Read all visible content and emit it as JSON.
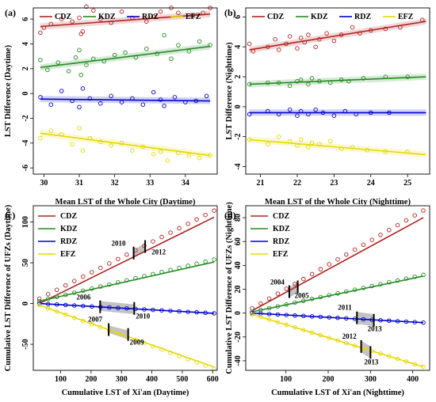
{
  "colors": {
    "CDZ": "#b22222",
    "KDZ": "#228b22",
    "RDZ": "#0000cd",
    "EFZ": "#e5d800",
    "band": "#aaaaaa"
  },
  "chart_data": [
    {
      "type": "scatter",
      "panel_label": "(a)",
      "xlabel": "Mean LST of the Whole City (Daytime)",
      "ylabel": "LST Difference (Daytime)",
      "xlim": [
        29.7,
        34.9
      ],
      "ylim": [
        -6.5,
        6.9
      ],
      "xticks": [
        30,
        31,
        32,
        33,
        34
      ],
      "yticks": [
        -6,
        -4,
        -2,
        0,
        2,
        4,
        6
      ],
      "legend_position": "top",
      "series": [
        {
          "name": "CDZ",
          "key": "CDZ",
          "fit": [
            [
              29.9,
              5.4
            ],
            [
              34.7,
              6.4
            ]
          ],
          "points": [
            [
              29.9,
              4.9
            ],
            [
              30.0,
              5.3
            ],
            [
              30.2,
              5.6
            ],
            [
              30.5,
              6.0
            ],
            [
              30.8,
              5.8
            ],
            [
              31.0,
              6.1
            ],
            [
              31.05,
              4.8
            ],
            [
              31.1,
              5.0
            ],
            [
              31.2,
              7.0
            ],
            [
              31.4,
              6.7
            ],
            [
              31.6,
              6.0
            ],
            [
              31.9,
              5.7
            ],
            [
              32.2,
              6.6
            ],
            [
              32.5,
              6.1
            ],
            [
              32.9,
              5.8
            ],
            [
              33.1,
              6.2
            ],
            [
              33.3,
              6.6
            ],
            [
              33.6,
              6.9
            ],
            [
              33.8,
              6.5
            ],
            [
              34.2,
              6.3
            ],
            [
              34.5,
              6.5
            ],
            [
              34.7,
              6.9
            ]
          ]
        },
        {
          "name": "KDZ",
          "key": "KDZ",
          "fit": [
            [
              29.9,
              2.1
            ],
            [
              34.7,
              3.8
            ]
          ],
          "points": [
            [
              29.9,
              2.7
            ],
            [
              30.1,
              1.9
            ],
            [
              30.4,
              2.5
            ],
            [
              30.7,
              1.8
            ],
            [
              30.9,
              2.9
            ],
            [
              31.0,
              3.5
            ],
            [
              31.05,
              1.5
            ],
            [
              31.2,
              2.3
            ],
            [
              31.4,
              2.8
            ],
            [
              31.7,
              2.6
            ],
            [
              32.0,
              3.1
            ],
            [
              32.3,
              3.3
            ],
            [
              32.6,
              2.9
            ],
            [
              32.9,
              3.6
            ],
            [
              33.2,
              3.2
            ],
            [
              33.4,
              4.7
            ],
            [
              33.6,
              2.8
            ],
            [
              33.8,
              3.9
            ],
            [
              34.1,
              3.4
            ],
            [
              34.4,
              4.2
            ],
            [
              34.7,
              3.9
            ]
          ]
        },
        {
          "name": "RDZ",
          "key": "RDZ",
          "fit": [
            [
              29.9,
              -0.45
            ],
            [
              34.7,
              -0.6
            ]
          ],
          "points": [
            [
              29.9,
              -0.3
            ],
            [
              30.2,
              -0.9
            ],
            [
              30.5,
              0.2
            ],
            [
              30.8,
              -0.6
            ],
            [
              31.0,
              -1.1
            ],
            [
              31.1,
              0.4
            ],
            [
              31.3,
              -0.4
            ],
            [
              31.6,
              -0.8
            ],
            [
              31.9,
              -0.2
            ],
            [
              32.2,
              -0.7
            ],
            [
              32.5,
              -0.4
            ],
            [
              32.8,
              -0.9
            ],
            [
              33.1,
              0.1
            ],
            [
              33.3,
              -0.5
            ],
            [
              33.4,
              -1.0
            ],
            [
              33.7,
              -0.3
            ],
            [
              34.0,
              -0.7
            ],
            [
              34.3,
              -0.6
            ],
            [
              34.6,
              -0.2
            ]
          ]
        },
        {
          "name": "EFZ",
          "key": "EFZ",
          "fit": [
            [
              29.9,
              -3.2
            ],
            [
              34.7,
              -5.0
            ]
          ],
          "points": [
            [
              29.9,
              -3.6
            ],
            [
              30.2,
              -3.0
            ],
            [
              30.5,
              -3.3
            ],
            [
              30.8,
              -4.1
            ],
            [
              31.0,
              -2.8
            ],
            [
              31.1,
              -4.6
            ],
            [
              31.3,
              -3.6
            ],
            [
              31.6,
              -3.9
            ],
            [
              31.9,
              -4.2
            ],
            [
              32.2,
              -4.0
            ],
            [
              32.5,
              -4.6
            ],
            [
              32.8,
              -4.3
            ],
            [
              33.1,
              -4.9
            ],
            [
              33.3,
              -4.7
            ],
            [
              33.5,
              -5.4
            ],
            [
              33.8,
              -4.8
            ],
            [
              34.1,
              -5.0
            ],
            [
              34.4,
              -5.2
            ],
            [
              34.7,
              -5.0
            ]
          ]
        }
      ]
    },
    {
      "type": "scatter",
      "panel_label": "(b)",
      "xlabel": "Mean LST of the Whole City (Nighttime)",
      "ylabel": "LST Difference (Nighttime)",
      "xlim": [
        20.6,
        25.6
      ],
      "ylim": [
        -4.5,
        6.6
      ],
      "xticks": [
        21,
        22,
        23,
        24,
        25
      ],
      "yticks": [
        -4,
        -2,
        0,
        2,
        4,
        6
      ],
      "legend_position": "top",
      "series": [
        {
          "name": "CDZ",
          "key": "CDZ",
          "fit": [
            [
              20.7,
              3.8
            ],
            [
              25.5,
              5.7
            ]
          ],
          "points": [
            [
              20.7,
              4.2
            ],
            [
              20.8,
              3.7
            ],
            [
              21.2,
              4.0
            ],
            [
              21.4,
              4.5
            ],
            [
              21.5,
              3.8
            ],
            [
              21.7,
              4.2
            ],
            [
              21.8,
              4.7
            ],
            [
              22.0,
              3.9
            ],
            [
              22.1,
              4.6
            ],
            [
              22.2,
              4.3
            ],
            [
              22.3,
              4.8
            ],
            [
              22.5,
              4.0
            ],
            [
              22.6,
              4.5
            ],
            [
              22.8,
              4.9
            ],
            [
              23.0,
              4.4
            ],
            [
              23.2,
              4.8
            ],
            [
              23.5,
              5.3
            ],
            [
              23.7,
              4.9
            ],
            [
              24.0,
              5.1
            ],
            [
              24.4,
              5.2
            ],
            [
              24.8,
              5.3
            ],
            [
              25.4,
              5.8
            ]
          ]
        },
        {
          "name": "KDZ",
          "key": "KDZ",
          "fit": [
            [
              20.7,
              1.5
            ],
            [
              25.5,
              2.0
            ]
          ],
          "points": [
            [
              20.7,
              1.5
            ],
            [
              21.2,
              1.6
            ],
            [
              21.5,
              1.6
            ],
            [
              21.8,
              1.4
            ],
            [
              22.0,
              1.7
            ],
            [
              22.1,
              1.8
            ],
            [
              22.3,
              1.5
            ],
            [
              22.4,
              1.9
            ],
            [
              22.6,
              1.7
            ],
            [
              22.9,
              1.6
            ],
            [
              23.2,
              1.8
            ],
            [
              23.4,
              1.7
            ],
            [
              23.8,
              1.9
            ],
            [
              24.4,
              2.0
            ],
            [
              25.0,
              2.0
            ]
          ]
        },
        {
          "name": "RDZ",
          "key": "RDZ",
          "fit": [
            [
              20.7,
              -0.4
            ],
            [
              25.5,
              -0.4
            ]
          ],
          "points": [
            [
              20.7,
              -0.5
            ],
            [
              21.2,
              -0.3
            ],
            [
              21.5,
              -0.5
            ],
            [
              21.8,
              -0.2
            ],
            [
              22.0,
              -0.6
            ],
            [
              22.1,
              -0.3
            ],
            [
              22.3,
              -0.5
            ],
            [
              22.5,
              -0.2
            ],
            [
              22.7,
              -0.4
            ],
            [
              23.0,
              -0.6
            ],
            [
              23.3,
              -0.3
            ],
            [
              23.6,
              -0.5
            ],
            [
              24.0,
              -0.4
            ],
            [
              24.5,
              -0.4
            ]
          ]
        },
        {
          "name": "EFZ",
          "key": "EFZ",
          "fit": [
            [
              20.7,
              -2.2
            ],
            [
              25.5,
              -3.2
            ]
          ],
          "points": [
            [
              20.7,
              -2.2
            ],
            [
              21.2,
              -2.5
            ],
            [
              21.5,
              -2.0
            ],
            [
              21.8,
              -2.3
            ],
            [
              22.0,
              -2.6
            ],
            [
              22.1,
              -2.2
            ],
            [
              22.3,
              -2.7
            ],
            [
              22.4,
              -2.4
            ],
            [
              22.6,
              -2.5
            ],
            [
              22.9,
              -2.3
            ],
            [
              23.2,
              -2.8
            ],
            [
              23.5,
              -2.7
            ],
            [
              23.9,
              -2.9
            ],
            [
              24.4,
              -3.0
            ],
            [
              25.0,
              -3.0
            ]
          ]
        }
      ]
    },
    {
      "type": "scatter",
      "panel_label": "(c)",
      "xlabel": "Cumulative LST of Xi'an (Daytime)",
      "ylabel": "Cumulative LST Difference of UFZs (Daytime)",
      "xlim": [
        10,
        615
      ],
      "ylim": [
        -82,
        120
      ],
      "xticks": [
        100,
        200,
        300,
        400,
        500,
        600
      ],
      "yticks": [
        -50,
        0,
        50,
        100
      ],
      "legend_position": "top-left",
      "series": [
        {
          "name": "CDZ",
          "key": "CDZ",
          "fit": [
            [
              30,
              0
            ],
            [
              605,
              106
            ]
          ],
          "point_range": [
            30,
            605,
            6,
            114
          ],
          "point_count": 21
        },
        {
          "name": "KDZ",
          "key": "KDZ",
          "fit": [
            [
              30,
              3
            ],
            [
              605,
              51
            ]
          ],
          "point_range": [
            30,
            605,
            3,
            54
          ],
          "point_count": 21
        },
        {
          "name": "RDZ",
          "key": "RDZ",
          "fit": [
            [
              30,
              0
            ],
            [
              605,
              -12
            ]
          ],
          "point_range": [
            30,
            605,
            0,
            -12
          ],
          "point_count": 21
        },
        {
          "name": "EFZ",
          "key": "EFZ",
          "fit": [
            [
              30,
              -2
            ],
            [
              605,
              -78
            ]
          ],
          "point_range": [
            30,
            605,
            -2,
            -80
          ],
          "point_count": 21
        }
      ],
      "breakpoints": [
        {
          "label": "2010",
          "x": 340,
          "y": 62,
          "dx": -28,
          "dy": -9
        },
        {
          "label": "2012",
          "x": 378,
          "y": 70,
          "dx": 8,
          "dy": 10
        },
        {
          "label": "2006",
          "x": 230,
          "y": -4,
          "dx": -30,
          "dy": -9
        },
        {
          "label": "2010",
          "x": 342,
          "y": -6,
          "dx": 2,
          "dy": 13
        },
        {
          "label": "2007",
          "x": 258,
          "y": -32,
          "dx": -26,
          "dy": -10
        },
        {
          "label": "2009",
          "x": 322,
          "y": -38,
          "dx": 2,
          "dy": 13
        }
      ],
      "bands": [
        {
          "x1": 340,
          "y1a": 58,
          "y1b": 66,
          "x2": 378,
          "y2a": 64,
          "y2b": 74
        },
        {
          "x1": 230,
          "y1a": -9,
          "y1b": 3,
          "x2": 342,
          "y2a": -13,
          "y2b": -1
        },
        {
          "x1": 258,
          "y1a": -36,
          "y1b": -27,
          "x2": 322,
          "y2a": -44,
          "y2b": -33
        }
      ]
    },
    {
      "type": "scatter",
      "panel_label": "(d)",
      "xlabel": "Cumulative LST of Xi'an (Nighttime)",
      "ylabel": "Cumulative LST Difference of UFZs (Nighttime)",
      "xlim": [
        5,
        440
      ],
      "ylim": [
        -48,
        90
      ],
      "xticks": [
        100,
        200,
        300,
        400
      ],
      "yticks": [
        -40,
        -20,
        0,
        20,
        40,
        60,
        80
      ],
      "legend_position": "top-left",
      "series": [
        {
          "name": "CDZ",
          "key": "CDZ",
          "fit": [
            [
              20,
              2
            ],
            [
              425,
              80
            ]
          ],
          "point_range": [
            20,
            425,
            4,
            86
          ],
          "point_count": 21
        },
        {
          "name": "KDZ",
          "key": "KDZ",
          "fit": [
            [
              20,
              1
            ],
            [
              425,
              31
            ]
          ],
          "point_range": [
            20,
            425,
            1,
            32
          ],
          "point_count": 21
        },
        {
          "name": "RDZ",
          "key": "RDZ",
          "fit": [
            [
              20,
              0
            ],
            [
              425,
              -8
            ]
          ],
          "point_range": [
            20,
            425,
            0,
            -8
          ],
          "point_count": 21
        },
        {
          "name": "EFZ",
          "key": "EFZ",
          "fit": [
            [
              20,
              -1
            ],
            [
              425,
              -45
            ]
          ],
          "point_range": [
            20,
            425,
            -1,
            -45
          ],
          "point_count": 21
        }
      ],
      "breakpoints": [
        {
          "label": "2004",
          "x": 108,
          "y": 18,
          "dx": -24,
          "dy": -9
        },
        {
          "label": "2005",
          "x": 128,
          "y": 22,
          "dx": -4,
          "dy": 14
        },
        {
          "label": "2011",
          "x": 268,
          "y": -4,
          "dx": -24,
          "dy": -10
        },
        {
          "label": "2013",
          "x": 308,
          "y": -6,
          "dx": -8,
          "dy": 14
        },
        {
          "label": "2012",
          "x": 278,
          "y": -28,
          "dx": -24,
          "dy": -10
        },
        {
          "label": "2013",
          "x": 300,
          "y": -33,
          "dx": -8,
          "dy": 15
        }
      ],
      "bands": [
        {
          "x1": 108,
          "y1a": 13,
          "y1b": 22,
          "x2": 128,
          "y2a": 17,
          "y2b": 26
        },
        {
          "x1": 268,
          "y1a": -9,
          "y1b": 1,
          "x2": 308,
          "y2a": -11,
          "y2b": -1
        },
        {
          "x1": 278,
          "y1a": -33,
          "y1b": -23,
          "x2": 300,
          "y2a": -38,
          "y2b": -28
        }
      ]
    }
  ]
}
